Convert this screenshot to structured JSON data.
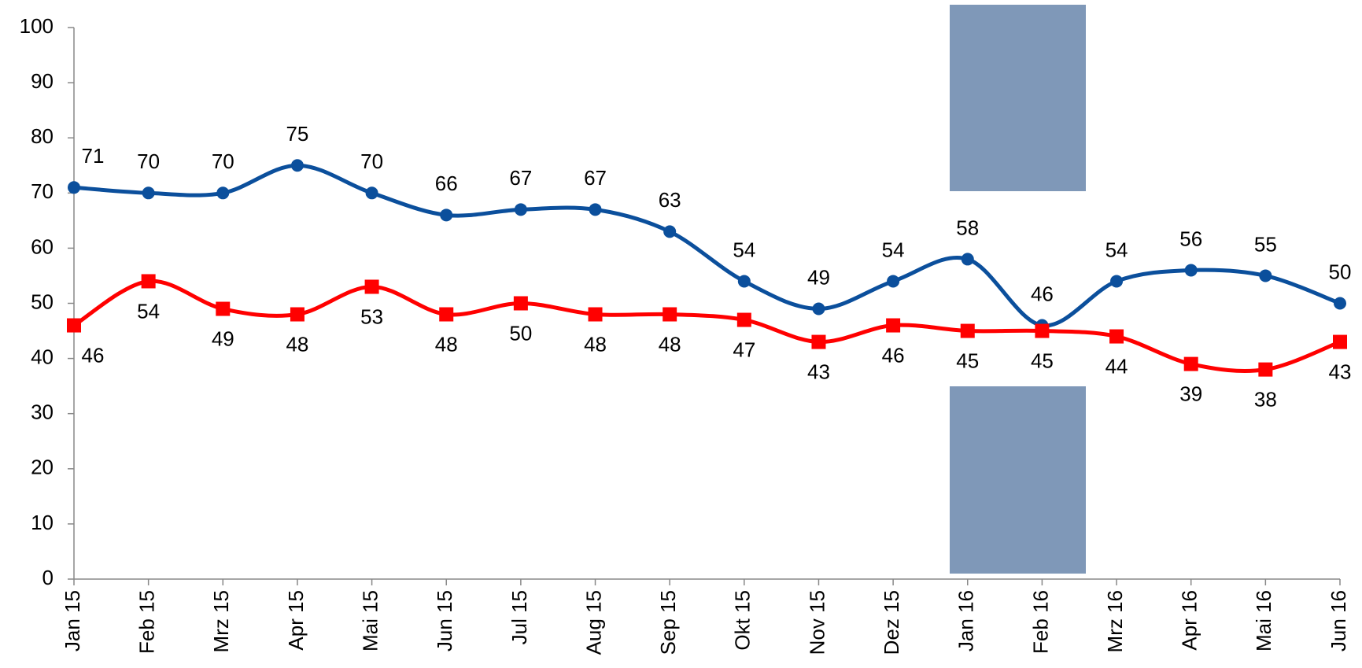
{
  "chart_data": {
    "type": "line",
    "categories": [
      "Jan 15",
      "Feb 15",
      "Mrz 15",
      "Apr 15",
      "Mai 15",
      "Jun 15",
      "Jul 15",
      "Aug 15",
      "Sep 15",
      "Okt 15",
      "Nov 15",
      "Dez 15",
      "Jan 16",
      "Feb 16",
      "Mrz 16",
      "Apr 16",
      "Mai 16",
      "Jun 16"
    ],
    "series": [
      {
        "color": "#0b4f9c",
        "marker": "circle",
        "values": [
          71,
          70,
          70,
          75,
          70,
          66,
          67,
          67,
          63,
          54,
          49,
          54,
          58,
          46,
          54,
          56,
          55,
          50
        ]
      },
      {
        "color": "#ff0000",
        "marker": "square",
        "values": [
          46,
          54,
          49,
          48,
          53,
          48,
          50,
          48,
          48,
          47,
          43,
          46,
          45,
          45,
          44,
          39,
          38,
          43
        ]
      }
    ],
    "ylim": [
      0,
      100
    ],
    "yticks": [
      0,
      10,
      20,
      30,
      40,
      50,
      60,
      70,
      80,
      90,
      100
    ],
    "grid": false,
    "smooth": true
  }
}
